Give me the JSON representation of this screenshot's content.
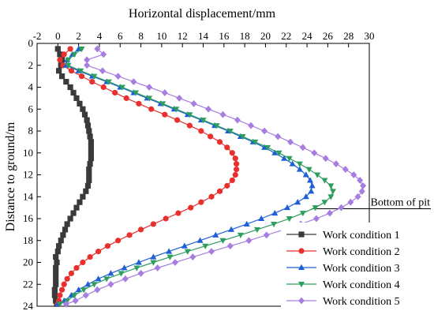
{
  "chart_data": {
    "type": "line",
    "title": "",
    "xlabel": "Horizontal displacement/mm",
    "ylabel": "Distance to ground/m",
    "x_axis_position": "top",
    "y_axis_inverted": true,
    "xlim": [
      -2,
      30
    ],
    "ylim": [
      0,
      24
    ],
    "x_ticks": [
      -2,
      0,
      2,
      4,
      6,
      8,
      10,
      12,
      14,
      16,
      18,
      20,
      22,
      24,
      26,
      28,
      30
    ],
    "y_ticks": [
      0,
      2,
      4,
      6,
      8,
      10,
      12,
      14,
      16,
      18,
      20,
      22,
      24
    ],
    "grid": false,
    "legend_position": "bottom-right",
    "annotation": {
      "text": "Bottom of pit",
      "depth": 15.1
    },
    "series": [
      {
        "name": "Work condition 1",
        "marker": "square",
        "color": "#3a3a3a",
        "x": [
          0.0,
          0.2,
          0.4,
          0.3,
          0.1,
          0.4,
          0.8,
          1.2,
          1.5,
          1.8,
          2.1,
          2.4,
          2.6,
          2.8,
          2.9,
          3.0,
          3.1,
          3.2,
          3.2,
          3.2,
          3.2,
          3.1,
          3.0,
          3.0,
          3.0,
          2.9,
          2.7,
          2.4,
          2.1,
          1.8,
          1.5,
          1.2,
          0.9,
          0.7,
          0.5,
          0.3,
          0.1,
          0.0,
          -0.2,
          -0.1,
          -0.2,
          -0.2,
          -0.2,
          -0.2,
          -0.3,
          -0.3,
          -0.2,
          -0.1
        ],
        "y": [
          0.5,
          1.0,
          1.5,
          2.0,
          2.5,
          3.0,
          3.5,
          4.0,
          4.5,
          5.0,
          5.5,
          6.0,
          6.5,
          7.0,
          7.5,
          8.0,
          8.5,
          9.0,
          9.5,
          10.0,
          10.5,
          11.0,
          11.5,
          12.0,
          12.5,
          13.0,
          13.5,
          14.0,
          14.5,
          15.0,
          15.5,
          16.0,
          16.5,
          17.0,
          17.5,
          18.0,
          18.5,
          19.0,
          19.5,
          20.0,
          20.5,
          21.0,
          21.5,
          22.0,
          22.5,
          23.0,
          23.5,
          23.8
        ]
      },
      {
        "name": "Work condition 2",
        "marker": "circle",
        "color": "#e8302f",
        "x": [
          1.2,
          0.6,
          0.2,
          0.5,
          1.3,
          2.3,
          3.3,
          4.4,
          5.5,
          6.6,
          7.8,
          9.0,
          10.3,
          11.5,
          12.7,
          13.8,
          14.7,
          15.6,
          16.3,
          16.8,
          17.1,
          17.2,
          17.2,
          17.1,
          16.8,
          16.3,
          15.6,
          14.8,
          13.8,
          12.8,
          11.6,
          10.4,
          9.2,
          8.0,
          6.9,
          5.8,
          4.8,
          3.9,
          3.1,
          2.4,
          1.8,
          1.3,
          0.9,
          0.6,
          0.4,
          0.2,
          0.1,
          0.0
        ],
        "y": [
          0.5,
          1.0,
          1.5,
          2.0,
          2.5,
          3.0,
          3.5,
          4.0,
          4.5,
          5.0,
          5.5,
          6.0,
          6.5,
          7.0,
          7.5,
          8.0,
          8.5,
          9.0,
          9.5,
          10.0,
          10.5,
          11.0,
          11.5,
          12.0,
          12.5,
          13.0,
          13.5,
          14.0,
          14.5,
          15.0,
          15.5,
          16.0,
          16.5,
          17.0,
          17.5,
          18.0,
          18.5,
          19.0,
          19.5,
          20.0,
          20.5,
          21.0,
          21.5,
          22.0,
          22.5,
          23.0,
          23.5,
          23.8
        ]
      },
      {
        "name": "Work condition 3",
        "marker": "triangle-up",
        "color": "#1e5fd8",
        "x": [
          2.0,
          1.4,
          0.9,
          0.8,
          2.0,
          3.3,
          4.7,
          6.0,
          7.3,
          8.6,
          9.9,
          11.2,
          12.5,
          13.8,
          15.1,
          16.4,
          17.6,
          18.8,
          19.9,
          20.9,
          21.8,
          22.6,
          23.3,
          23.9,
          24.3,
          24.5,
          24.4,
          23.9,
          23.1,
          22.1,
          20.9,
          19.6,
          18.2,
          16.7,
          15.2,
          13.7,
          12.2,
          10.7,
          9.2,
          7.8,
          6.4,
          5.1,
          3.9,
          2.9,
          2.0,
          1.3,
          0.6,
          0.0
        ],
        "y": [
          0.5,
          1.0,
          1.5,
          2.0,
          2.5,
          3.0,
          3.5,
          4.0,
          4.5,
          5.0,
          5.5,
          6.0,
          6.5,
          7.0,
          7.5,
          8.0,
          8.5,
          9.0,
          9.5,
          10.0,
          10.5,
          11.0,
          11.5,
          12.0,
          12.5,
          13.0,
          13.5,
          14.0,
          14.5,
          15.0,
          15.5,
          16.0,
          16.5,
          17.0,
          17.5,
          18.0,
          18.5,
          19.0,
          19.5,
          20.0,
          20.5,
          21.0,
          21.5,
          22.0,
          22.5,
          23.0,
          23.5,
          23.8
        ]
      },
      {
        "name": "Work condition 4",
        "marker": "triangle-down",
        "color": "#2e9e5e",
        "x": [
          2.3,
          1.6,
          1.0,
          1.0,
          2.2,
          3.5,
          4.9,
          6.2,
          7.5,
          8.8,
          10.1,
          11.4,
          12.7,
          14.0,
          15.3,
          16.6,
          17.8,
          19.0,
          20.2,
          21.3,
          22.3,
          23.3,
          24.2,
          25.0,
          25.7,
          26.3,
          26.5,
          26.3,
          25.7,
          24.8,
          23.6,
          22.3,
          20.8,
          19.2,
          17.6,
          15.9,
          14.2,
          12.5,
          10.8,
          9.2,
          7.6,
          6.1,
          4.7,
          3.5,
          2.5,
          1.6,
          0.9,
          0.2
        ],
        "y": [
          0.5,
          1.0,
          1.5,
          2.0,
          2.5,
          3.0,
          3.5,
          4.0,
          4.5,
          5.0,
          5.5,
          6.0,
          6.5,
          7.0,
          7.5,
          8.0,
          8.5,
          9.0,
          9.5,
          10.0,
          10.5,
          11.0,
          11.5,
          12.0,
          12.5,
          13.0,
          13.5,
          14.0,
          14.5,
          15.0,
          15.5,
          16.0,
          16.5,
          17.0,
          17.5,
          18.0,
          18.5,
          19.0,
          19.5,
          20.0,
          20.5,
          21.0,
          21.5,
          22.0,
          22.5,
          23.0,
          23.5,
          23.8
        ]
      },
      {
        "name": "Work condition 5",
        "marker": "diamond",
        "color": "#a77de0",
        "x": [
          3.8,
          4.4,
          2.8,
          2.8,
          4.3,
          5.8,
          7.3,
          8.8,
          10.3,
          11.7,
          13.1,
          14.5,
          15.9,
          17.3,
          18.6,
          19.9,
          21.2,
          22.4,
          23.6,
          24.7,
          25.8,
          26.8,
          27.7,
          28.5,
          29.1,
          29.4,
          29.3,
          28.9,
          28.2,
          27.3,
          26.2,
          24.9,
          23.4,
          21.8,
          20.1,
          18.4,
          16.6,
          14.8,
          13.0,
          11.3,
          9.6,
          8.0,
          6.5,
          5.1,
          3.8,
          2.7,
          1.7,
          0.8
        ],
        "y": [
          0.5,
          1.0,
          1.5,
          2.0,
          2.5,
          3.0,
          3.5,
          4.0,
          4.5,
          5.0,
          5.5,
          6.0,
          6.5,
          7.0,
          7.5,
          8.0,
          8.5,
          9.0,
          9.5,
          10.0,
          10.5,
          11.0,
          11.5,
          12.0,
          12.5,
          13.0,
          13.5,
          14.0,
          14.5,
          15.0,
          15.5,
          16.0,
          16.5,
          17.0,
          17.5,
          18.0,
          18.5,
          19.0,
          19.5,
          20.0,
          20.5,
          21.0,
          21.5,
          22.0,
          22.5,
          23.0,
          23.5,
          23.8
        ]
      }
    ]
  }
}
